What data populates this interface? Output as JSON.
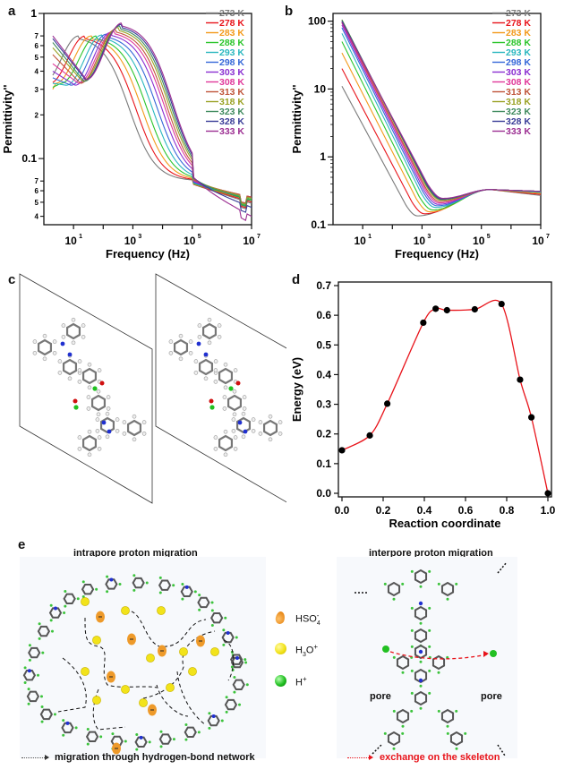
{
  "panels": {
    "a": {
      "letter": "a"
    },
    "b": {
      "letter": "b"
    },
    "c": {
      "letter": "c"
    },
    "d": {
      "letter": "d"
    },
    "e": {
      "letter": "e"
    }
  },
  "legend_temps": [
    "273 K",
    "278 K",
    "283 K",
    "288 K",
    "293 K",
    "298 K",
    "303 K",
    "308 K",
    "313 K",
    "318 K",
    "323 K",
    "328 K",
    "333 K"
  ],
  "series_colors": [
    "#7a7a7a",
    "#e8141b",
    "#f39a1b",
    "#2bc52b",
    "#2ab7bf",
    "#3567d8",
    "#8a2fd1",
    "#e0389a",
    "#c0553a",
    "#9aa224",
    "#3f8a5e",
    "#3a3d98",
    "#9c2f92"
  ],
  "chart_data": [
    {
      "id": "a",
      "type": "line",
      "title": "",
      "xlabel": "Frequency (Hz)",
      "ylabel": "Permittivity''",
      "xscale": "log",
      "yscale": "log",
      "xlim": [
        1,
        10000000
      ],
      "ylim": [
        0.035,
        1.0
      ],
      "x_ticks": [
        "10^1",
        "10^3",
        "10^5",
        "10^7"
      ],
      "y_tick_labels": [
        "1",
        "7",
        "6",
        "5",
        "4",
        "3",
        "2",
        "0.1",
        "7",
        "6",
        "5",
        "4"
      ],
      "y_tick_values": [
        1.0,
        0.7,
        0.6,
        0.5,
        0.4,
        0.3,
        0.2,
        0.1,
        0.07,
        0.06,
        0.05,
        0.04
      ],
      "legend": "top-right",
      "series_note": "Peak frequency shifts higher with temperature; approximate shape per series",
      "series": [
        {
          "name": "273 K",
          "low_f_value": 0.29,
          "dip_value": 0.33,
          "plateau_f": 15,
          "plateau_value": 0.7,
          "hf_value": 0.048
        },
        {
          "name": "278 K",
          "low_f_value": 0.29,
          "dip_value": 0.33,
          "plateau_f": 25,
          "plateau_value": 0.7,
          "hf_value": 0.049
        },
        {
          "name": "283 K",
          "low_f_value": 0.3,
          "dip_value": 0.33,
          "plateau_f": 40,
          "plateau_value": 0.7,
          "hf_value": 0.05
        },
        {
          "name": "288 K",
          "low_f_value": 0.31,
          "dip_value": 0.33,
          "plateau_f": 60,
          "plateau_value": 0.7,
          "hf_value": 0.051
        },
        {
          "name": "293 K",
          "low_f_value": 0.33,
          "dip_value": 0.32,
          "plateau_f": 90,
          "plateau_value": 0.71,
          "hf_value": 0.052
        },
        {
          "name": "298 K",
          "low_f_value": 0.36,
          "dip_value": 0.32,
          "plateau_f": 130,
          "plateau_value": 0.72,
          "hf_value": 0.052
        },
        {
          "name": "303 K",
          "low_f_value": 0.4,
          "dip_value": 0.32,
          "plateau_f": 180,
          "plateau_value": 0.74,
          "hf_value": 0.053
        },
        {
          "name": "308 K",
          "low_f_value": 0.45,
          "dip_value": 0.33,
          "plateau_f": 230,
          "plateau_value": 0.76,
          "hf_value": 0.053
        },
        {
          "name": "313 K",
          "low_f_value": 0.52,
          "dip_value": 0.33,
          "plateau_f": 270,
          "plateau_value": 0.78,
          "hf_value": 0.053
        },
        {
          "name": "318 K",
          "low_f_value": 0.58,
          "dip_value": 0.34,
          "plateau_f": 320,
          "plateau_value": 0.8,
          "hf_value": 0.052
        },
        {
          "name": "323 K",
          "low_f_value": 0.63,
          "dip_value": 0.34,
          "plateau_f": 360,
          "plateau_value": 0.82,
          "hf_value": 0.05
        },
        {
          "name": "328 K",
          "low_f_value": 0.67,
          "dip_value": 0.35,
          "plateau_f": 400,
          "plateau_value": 0.84,
          "hf_value": 0.045
        },
        {
          "name": "333 K",
          "low_f_value": 0.7,
          "dip_value": 0.35,
          "plateau_f": 430,
          "plateau_value": 0.86,
          "hf_value": 0.039
        }
      ]
    },
    {
      "id": "b",
      "type": "line",
      "title": "",
      "xlabel": "Frequency (Hz)",
      "ylabel": "Permittivity''",
      "xscale": "log",
      "yscale": "log",
      "xlim": [
        1,
        10000000
      ],
      "ylim": [
        0.1,
        130
      ],
      "x_ticks": [
        "10^1",
        "10^3",
        "10^5",
        "10^7"
      ],
      "y_tick_labels": [
        "100",
        "10",
        "1",
        "0.1"
      ],
      "y_tick_values": [
        100,
        10,
        1,
        0.1
      ],
      "legend": "top-right",
      "series": [
        {
          "name": "273 K",
          "start_value": 11,
          "min_f": 700,
          "min_value": 0.135,
          "hf_value": 0.27
        },
        {
          "name": "278 K",
          "start_value": 20,
          "min_f": 1200,
          "min_value": 0.145,
          "hf_value": 0.28
        },
        {
          "name": "283 K",
          "start_value": 34,
          "min_f": 1800,
          "min_value": 0.155,
          "hf_value": 0.29
        },
        {
          "name": "288 K",
          "start_value": 50,
          "min_f": 2300,
          "min_value": 0.165,
          "hf_value": 0.3
        },
        {
          "name": "293 K",
          "start_value": 66,
          "min_f": 2800,
          "min_value": 0.18,
          "hf_value": 0.3
        },
        {
          "name": "298 K",
          "start_value": 80,
          "min_f": 3200,
          "min_value": 0.19,
          "hf_value": 0.31
        },
        {
          "name": "303 K",
          "start_value": 88,
          "min_f": 3500,
          "min_value": 0.2,
          "hf_value": 0.31
        },
        {
          "name": "308 K",
          "start_value": 94,
          "min_f": 3800,
          "min_value": 0.21,
          "hf_value": 0.31
        },
        {
          "name": "313 K",
          "start_value": 98,
          "min_f": 4000,
          "min_value": 0.22,
          "hf_value": 0.31
        },
        {
          "name": "318 K",
          "start_value": 105,
          "min_f": 4300,
          "min_value": 0.23,
          "hf_value": 0.31
        },
        {
          "name": "323 K",
          "start_value": 104,
          "min_f": 4500,
          "min_value": 0.235,
          "hf_value": 0.31
        },
        {
          "name": "328 K",
          "start_value": 100,
          "min_f": 4700,
          "min_value": 0.24,
          "hf_value": 0.31
        },
        {
          "name": "333 K",
          "start_value": 96,
          "min_f": 5000,
          "min_value": 0.245,
          "hf_value": 0.31
        }
      ]
    },
    {
      "id": "d",
      "type": "line",
      "title": "",
      "xlabel": "Reaction coordinate",
      "ylabel": "Energy (eV)",
      "xlim": [
        0.0,
        1.0
      ],
      "ylim": [
        0.0,
        0.7
      ],
      "x_ticks": [
        "0.0",
        "0.2",
        "0.4",
        "0.6",
        "0.8",
        "1.0"
      ],
      "y_ticks": [
        "0.0",
        "0.1",
        "0.2",
        "0.3",
        "0.4",
        "0.5",
        "0.6",
        "0.7"
      ],
      "x": [
        0.0,
        0.135,
        0.22,
        0.395,
        0.455,
        0.51,
        0.645,
        0.775,
        0.865,
        0.92,
        1.0
      ],
      "values": [
        0.145,
        0.195,
        0.302,
        0.575,
        0.622,
        0.617,
        0.62,
        0.638,
        0.383,
        0.256,
        0.0
      ],
      "line_color": "#e8141b",
      "marker_color": "#000000"
    }
  ],
  "panel_e": {
    "left_title": "intrapore proton migration",
    "right_title": "interpore proton migration",
    "legend": [
      {
        "symbol": "orange-drop",
        "label_main": "HSO",
        "sub": "4",
        "sup": "-"
      },
      {
        "symbol": "yellow-sphere",
        "label_main": "H",
        "sub": "3",
        "label_tail": "O",
        "sup": "+"
      },
      {
        "symbol": "green-sphere",
        "label_main": "H",
        "sup": "+"
      }
    ],
    "pore_label_left": "pore",
    "pore_label_right": "pore",
    "footer_left": "migration through hydrogen-bond network",
    "footer_right": "exchange on the skeleton",
    "footer_right_color": "#e8141b"
  }
}
